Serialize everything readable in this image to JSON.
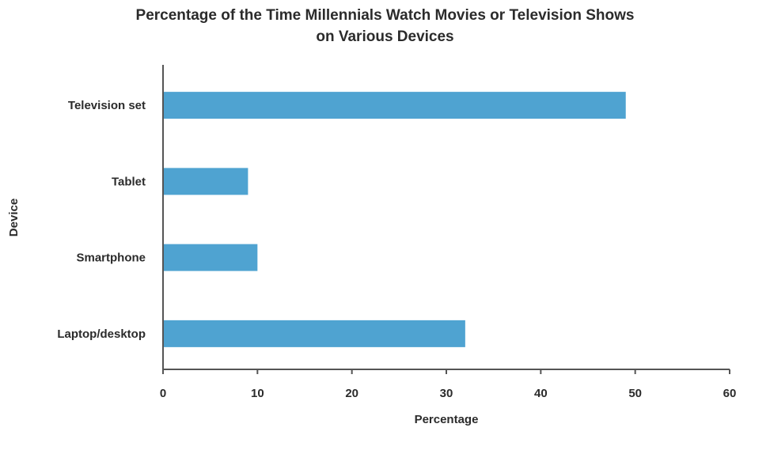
{
  "chart_data": {
    "type": "bar",
    "orientation": "horizontal",
    "title": "Percentage of the Time Millennials Watch Movies or Television Shows",
    "subtitle": "on Various Devices",
    "xlabel": "Percentage",
    "ylabel": "Device",
    "categories": [
      "Television set",
      "Tablet",
      "Smartphone",
      "Laptop/desktop"
    ],
    "values": [
      49,
      9,
      10,
      32
    ],
    "xlim": [
      0,
      60
    ],
    "xticks": [
      0,
      10,
      20,
      30,
      40,
      50,
      60
    ],
    "grid": false,
    "bar_color": "#4fa3d1"
  }
}
